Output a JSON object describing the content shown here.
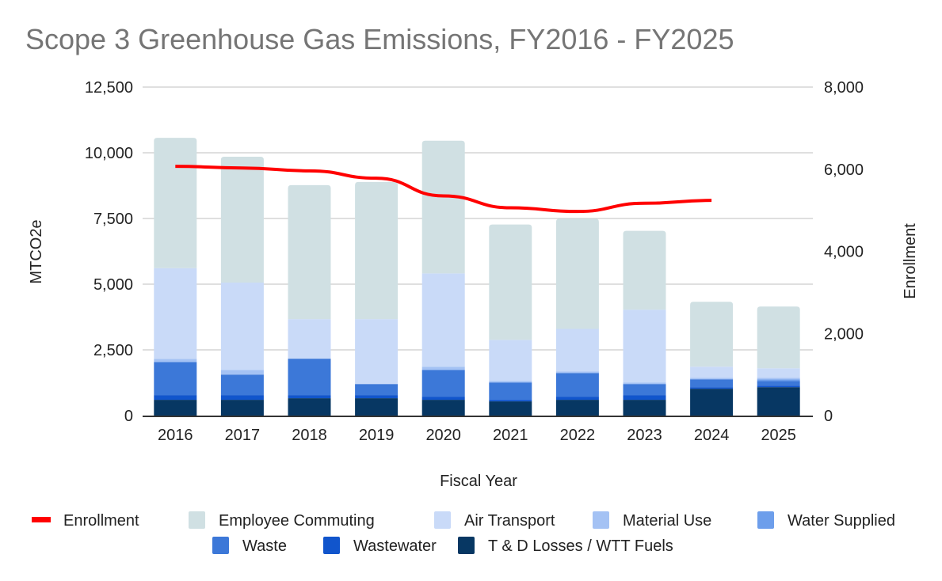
{
  "chart_data": {
    "type": "bar",
    "stacked": true,
    "title": "Scope 3 Greenhouse Gas Emissions, FY2016 - FY2025",
    "xlabel": "Fiscal Year",
    "ylabel": "MTCO2e",
    "y2label": "Enrollment",
    "categories": [
      "2016",
      "2017",
      "2018",
      "2019",
      "2020",
      "2021",
      "2022",
      "2023",
      "2024",
      "2025"
    ],
    "ylim": [
      0,
      12500
    ],
    "yticks": [
      0,
      2500,
      5000,
      7500,
      10000,
      12500
    ],
    "ytick_labels": [
      "0",
      "2,500",
      "5,000",
      "7,500",
      "10,000",
      "12,500"
    ],
    "y2lim": [
      0,
      8000
    ],
    "y2ticks": [
      0,
      2000,
      4000,
      6000,
      8000
    ],
    "y2tick_labels": [
      "0",
      "2,000",
      "4,000",
      "6,000",
      "8,000"
    ],
    "grid": true,
    "legend_position": "bottom",
    "series": [
      {
        "name": "T & D Losses / WTT Fuels",
        "color": "#073763",
        "values": [
          600,
          600,
          660,
          660,
          600,
          540,
          600,
          600,
          1020,
          1080
        ]
      },
      {
        "name": "Wastewater",
        "color": "#1155cc",
        "values": [
          180,
          180,
          120,
          120,
          120,
          60,
          120,
          180,
          60,
          60
        ]
      },
      {
        "name": "Waste",
        "color": "#3c78d8",
        "values": [
          1260,
          780,
          1385,
          420,
          1020,
          660,
          900,
          420,
          300,
          180
        ]
      },
      {
        "name": "Water Supplied",
        "color": "#6d9eeb",
        "values": [
          0,
          0,
          0,
          0,
          0,
          0,
          0,
          0,
          0,
          60
        ]
      },
      {
        "name": "Material Use",
        "color": "#a4c2f4",
        "values": [
          120,
          180,
          0,
          0,
          120,
          60,
          60,
          60,
          60,
          60
        ]
      },
      {
        "name": "Air Transport",
        "color": "#c9daf8",
        "values": [
          3450,
          3320,
          1505,
          2470,
          3550,
          1560,
          1620,
          2770,
          420,
          360
        ]
      },
      {
        "name": "Employee Commuting",
        "color": "#d0e0e3",
        "values": [
          4960,
          4790,
          5100,
          5220,
          5050,
          4390,
          4190,
          3000,
          2470,
          2350
        ]
      }
    ],
    "line_series": {
      "name": "Enrollment",
      "axis": "right",
      "color": "#ff0000",
      "values": [
        6070,
        6030,
        5960,
        5780,
        5350,
        5060,
        4970,
        5170,
        5240,
        null
      ]
    },
    "legend": [
      {
        "name": "Enrollment",
        "type": "line",
        "color": "#ff0000"
      },
      {
        "name": "Employee Commuting",
        "type": "box",
        "color": "#d0e0e3"
      },
      {
        "name": "Air Transport",
        "type": "box",
        "color": "#c9daf8"
      },
      {
        "name": "Material Use",
        "type": "box",
        "color": "#a4c2f4"
      },
      {
        "name": "Water Supplied",
        "type": "box",
        "color": "#6d9eeb"
      },
      {
        "name": "Waste",
        "type": "box",
        "color": "#3c78d8"
      },
      {
        "name": "Wastewater",
        "type": "box",
        "color": "#1155cc"
      },
      {
        "name": "T & D Losses / WTT Fuels",
        "type": "box",
        "color": "#073763"
      }
    ]
  }
}
